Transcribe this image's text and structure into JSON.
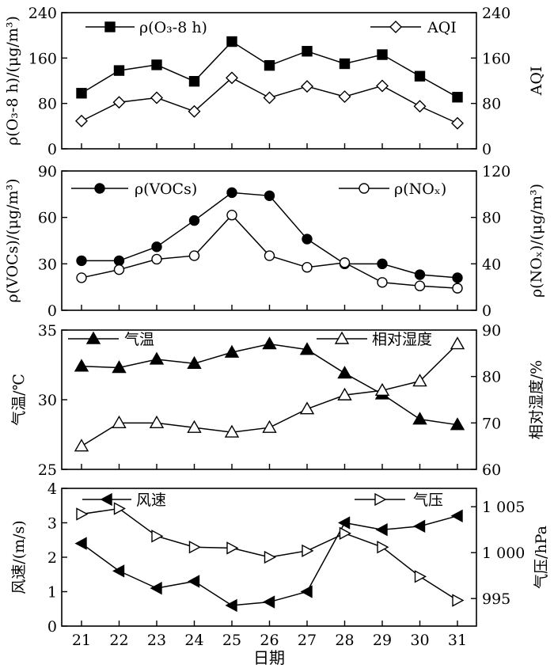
{
  "chart_data": [
    {
      "type": "line",
      "panel": "top",
      "x": [
        21,
        22,
        23,
        24,
        25,
        26,
        27,
        28,
        29,
        30,
        31
      ],
      "ylabel": "ρ(O₃-8 h)/(μg/m³)",
      "ylabel_right": "AQI",
      "ylim": [
        0,
        240
      ],
      "y2lim": [
        0,
        240
      ],
      "yticks": [
        "0",
        "80",
        "160",
        "240"
      ],
      "y2ticks": [
        "0",
        "80",
        "160",
        "240"
      ],
      "series": [
        {
          "name": "ρ(O₃-8 h)",
          "marker": "filled-square",
          "axis": "left",
          "values": [
            98,
            138,
            148,
            119,
            189,
            147,
            172,
            150,
            166,
            128,
            91
          ]
        },
        {
          "name": "AQI",
          "marker": "open-diamond",
          "axis": "right",
          "values": [
            49,
            82,
            90,
            66,
            125,
            90,
            110,
            92,
            111,
            75,
            45
          ]
        }
      ]
    },
    {
      "type": "line",
      "panel": "second",
      "x": [
        21,
        22,
        23,
        24,
        25,
        26,
        27,
        28,
        29,
        30,
        31
      ],
      "ylabel": "ρ(VOCs)/(μg/m³)",
      "ylabel_right": "ρ(NOₓ)/(μg/m³)",
      "ylim": [
        0,
        90
      ],
      "y2lim": [
        0,
        120
      ],
      "yticks": [
        "0",
        "30",
        "60",
        "90"
      ],
      "y2ticks": [
        "0",
        "40",
        "80",
        "120"
      ],
      "series": [
        {
          "name": "ρ(VOCs)",
          "marker": "filled-circle",
          "axis": "left",
          "values": [
            32,
            32,
            41,
            58,
            76,
            74,
            46,
            30,
            30,
            23,
            21
          ]
        },
        {
          "name": "ρ(NOₓ)",
          "marker": "open-circle",
          "axis": "right",
          "values": [
            28,
            35,
            44,
            47,
            82,
            47,
            37,
            41,
            24,
            21,
            19
          ]
        }
      ]
    },
    {
      "type": "line",
      "panel": "third",
      "x": [
        21,
        22,
        23,
        24,
        25,
        26,
        27,
        28,
        29,
        30,
        31
      ],
      "ylabel": "气温/℃",
      "ylabel_right": "相对湿度/%",
      "ylim": [
        25,
        35
      ],
      "y2lim": [
        60,
        90
      ],
      "yticks": [
        "25",
        "30",
        "35"
      ],
      "y2ticks": [
        "60",
        "70",
        "80",
        "90"
      ],
      "series": [
        {
          "name": "气温",
          "marker": "filled-triangle",
          "axis": "left",
          "values": [
            32.4,
            32.3,
            32.9,
            32.6,
            33.4,
            34.0,
            33.6,
            31.9,
            30.4,
            28.6,
            28.2
          ]
        },
        {
          "name": "相对湿度",
          "marker": "open-triangle",
          "axis": "right",
          "values": [
            65,
            70,
            70,
            69,
            68,
            69,
            73,
            76,
            77,
            79,
            87
          ]
        }
      ]
    },
    {
      "type": "line",
      "panel": "bottom",
      "x": [
        21,
        22,
        23,
        24,
        25,
        26,
        27,
        28,
        29,
        30,
        31
      ],
      "xlabel": "日期",
      "xticks": [
        "21",
        "22",
        "23",
        "24",
        "25",
        "26",
        "27",
        "28",
        "29",
        "30",
        "31"
      ],
      "ylabel": "风速/(m/s)",
      "ylabel_right": "气压/hPa",
      "ylim": [
        0,
        4
      ],
      "y2lim": [
        992,
        1007
      ],
      "yticks": [
        "0",
        "1",
        "2",
        "3",
        "4"
      ],
      "y2ticks": [
        "995",
        "1 000",
        "1 005"
      ],
      "series": [
        {
          "name": "风速",
          "marker": "filled-left-triangle",
          "axis": "left",
          "values": [
            2.4,
            1.6,
            1.1,
            1.3,
            0.6,
            0.7,
            1.0,
            3.0,
            2.8,
            2.9,
            3.2
          ]
        },
        {
          "name": "气压",
          "marker": "open-right-triangle",
          "axis": "right",
          "values": [
            1004.2,
            1004.8,
            1001.8,
            1000.6,
            1000.5,
            999.5,
            1000.2,
            1002.1,
            1000.6,
            997.4,
            994.8
          ]
        }
      ]
    }
  ]
}
